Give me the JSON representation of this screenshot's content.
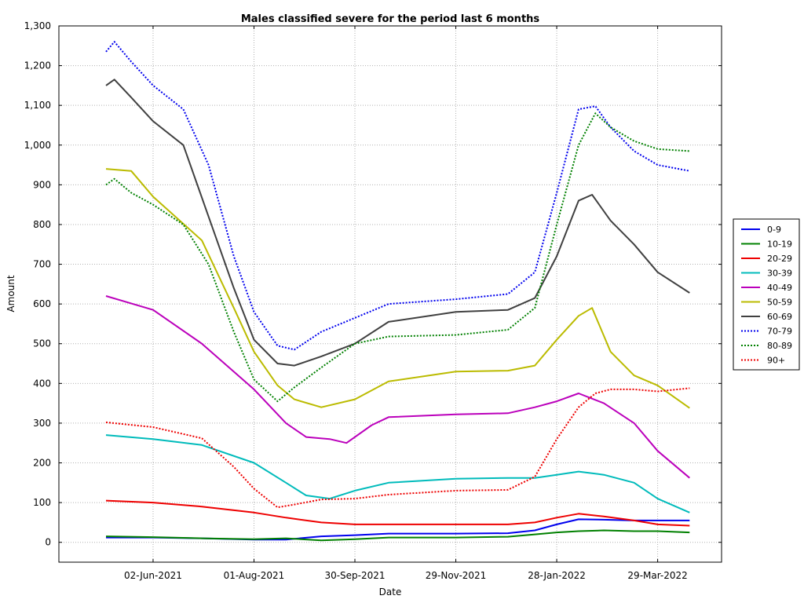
{
  "chart_data": {
    "type": "line",
    "title": "Males classified severe for the period last 6 months",
    "xlabel": "Date",
    "ylabel": "Amount",
    "x_start": "2021-05-05",
    "x_end": "2022-04-17",
    "xlim": [
      "2021-04-07",
      "2022-05-06"
    ],
    "ylim": [
      -50,
      1300
    ],
    "yticks": [
      0,
      100,
      200,
      300,
      400,
      500,
      600,
      700,
      800,
      900,
      1000,
      1100,
      1200,
      1300
    ],
    "ytick_labels": [
      "0",
      "100",
      "200",
      "300",
      "400",
      "500",
      "600",
      "700",
      "800",
      "900",
      "1,000",
      "1,100",
      "1,200",
      "1,300"
    ],
    "xticks": [
      "2021-06-02",
      "2021-08-01",
      "2021-09-30",
      "2021-11-29",
      "2022-01-28",
      "2022-03-29"
    ],
    "xtick_labels": [
      "02-Jun-2021",
      "01-Aug-2021",
      "30-Sep-2021",
      "29-Nov-2021",
      "28-Jan-2022",
      "29-Mar-2022"
    ],
    "grid": true,
    "legend_position": "right",
    "series": [
      {
        "name": "0-9",
        "color": "#0000ee",
        "dash": "solid",
        "points": [
          [
            "2021-05-05",
            12
          ],
          [
            "2021-06-02",
            12
          ],
          [
            "2021-07-01",
            10
          ],
          [
            "2021-08-01",
            7
          ],
          [
            "2021-08-20",
            7
          ],
          [
            "2021-09-10",
            15
          ],
          [
            "2021-09-30",
            18
          ],
          [
            "2021-10-20",
            22
          ],
          [
            "2021-11-29",
            22
          ],
          [
            "2021-12-30",
            23
          ],
          [
            "2022-01-15",
            30
          ],
          [
            "2022-01-28",
            45
          ],
          [
            "2022-02-10",
            58
          ],
          [
            "2022-02-25",
            57
          ],
          [
            "2022-03-15",
            55
          ],
          [
            "2022-03-29",
            55
          ],
          [
            "2022-04-17",
            55
          ]
        ]
      },
      {
        "name": "10-19",
        "color": "#008000",
        "dash": "solid",
        "points": [
          [
            "2021-05-05",
            15
          ],
          [
            "2021-06-02",
            13
          ],
          [
            "2021-07-01",
            10
          ],
          [
            "2021-08-01",
            8
          ],
          [
            "2021-08-20",
            10
          ],
          [
            "2021-09-10",
            5
          ],
          [
            "2021-09-30",
            8
          ],
          [
            "2021-10-20",
            12
          ],
          [
            "2021-11-29",
            12
          ],
          [
            "2021-12-30",
            14
          ],
          [
            "2022-01-15",
            20
          ],
          [
            "2022-01-28",
            25
          ],
          [
            "2022-02-10",
            28
          ],
          [
            "2022-02-25",
            30
          ],
          [
            "2022-03-15",
            28
          ],
          [
            "2022-03-29",
            28
          ],
          [
            "2022-04-17",
            25
          ]
        ]
      },
      {
        "name": "20-29",
        "color": "#ee0000",
        "dash": "solid",
        "points": [
          [
            "2021-05-05",
            105
          ],
          [
            "2021-06-02",
            100
          ],
          [
            "2021-07-01",
            90
          ],
          [
            "2021-08-01",
            75
          ],
          [
            "2021-08-20",
            62
          ],
          [
            "2021-09-10",
            50
          ],
          [
            "2021-09-30",
            45
          ],
          [
            "2021-10-20",
            45
          ],
          [
            "2021-11-29",
            45
          ],
          [
            "2021-12-30",
            45
          ],
          [
            "2022-01-15",
            50
          ],
          [
            "2022-01-28",
            62
          ],
          [
            "2022-02-10",
            72
          ],
          [
            "2022-02-25",
            65
          ],
          [
            "2022-03-15",
            55
          ],
          [
            "2022-03-29",
            45
          ],
          [
            "2022-04-17",
            42
          ]
        ]
      },
      {
        "name": "30-39",
        "color": "#00bbbb",
        "dash": "solid",
        "points": [
          [
            "2021-05-05",
            270
          ],
          [
            "2021-06-02",
            260
          ],
          [
            "2021-07-01",
            245
          ],
          [
            "2021-08-01",
            200
          ],
          [
            "2021-08-20",
            150
          ],
          [
            "2021-09-01",
            118
          ],
          [
            "2021-09-15",
            110
          ],
          [
            "2021-09-30",
            130
          ],
          [
            "2021-10-20",
            150
          ],
          [
            "2021-11-29",
            160
          ],
          [
            "2021-12-30",
            162
          ],
          [
            "2022-01-15",
            162
          ],
          [
            "2022-01-28",
            170
          ],
          [
            "2022-02-10",
            178
          ],
          [
            "2022-02-25",
            170
          ],
          [
            "2022-03-15",
            150
          ],
          [
            "2022-03-29",
            110
          ],
          [
            "2022-04-17",
            75
          ]
        ]
      },
      {
        "name": "40-49",
        "color": "#bb00bb",
        "dash": "solid",
        "points": [
          [
            "2021-05-05",
            620
          ],
          [
            "2021-06-02",
            585
          ],
          [
            "2021-07-01",
            500
          ],
          [
            "2021-08-01",
            385
          ],
          [
            "2021-08-20",
            300
          ],
          [
            "2021-09-01",
            265
          ],
          [
            "2021-09-15",
            260
          ],
          [
            "2021-09-25",
            250
          ],
          [
            "2021-10-10",
            295
          ],
          [
            "2021-10-20",
            315
          ],
          [
            "2021-11-29",
            322
          ],
          [
            "2021-12-30",
            325
          ],
          [
            "2022-01-15",
            340
          ],
          [
            "2022-01-28",
            355
          ],
          [
            "2022-02-10",
            375
          ],
          [
            "2022-02-25",
            350
          ],
          [
            "2022-03-15",
            300
          ],
          [
            "2022-03-29",
            230
          ],
          [
            "2022-04-17",
            162
          ]
        ]
      },
      {
        "name": "50-59",
        "color": "#bbbb00",
        "dash": "solid",
        "points": [
          [
            "2021-05-05",
            940
          ],
          [
            "2021-05-20",
            935
          ],
          [
            "2021-06-02",
            870
          ],
          [
            "2021-07-01",
            760
          ],
          [
            "2021-07-20",
            590
          ],
          [
            "2021-08-01",
            480
          ],
          [
            "2021-08-15",
            395
          ],
          [
            "2021-08-25",
            360
          ],
          [
            "2021-09-10",
            340
          ],
          [
            "2021-09-30",
            360
          ],
          [
            "2021-10-20",
            405
          ],
          [
            "2021-11-29",
            430
          ],
          [
            "2021-12-30",
            432
          ],
          [
            "2022-01-15",
            445
          ],
          [
            "2022-01-28",
            510
          ],
          [
            "2022-02-10",
            570
          ],
          [
            "2022-02-18",
            590
          ],
          [
            "2022-03-01",
            480
          ],
          [
            "2022-03-15",
            420
          ],
          [
            "2022-03-29",
            395
          ],
          [
            "2022-04-17",
            338
          ]
        ]
      },
      {
        "name": "60-69",
        "color": "#404040",
        "dash": "solid",
        "points": [
          [
            "2021-05-05",
            1150
          ],
          [
            "2021-05-10",
            1165
          ],
          [
            "2021-05-20",
            1120
          ],
          [
            "2021-06-02",
            1060
          ],
          [
            "2021-06-20",
            1000
          ],
          [
            "2021-07-05",
            820
          ],
          [
            "2021-07-20",
            640
          ],
          [
            "2021-08-01",
            510
          ],
          [
            "2021-08-15",
            450
          ],
          [
            "2021-08-25",
            445
          ],
          [
            "2021-09-10",
            468
          ],
          [
            "2021-09-30",
            500
          ],
          [
            "2021-10-20",
            555
          ],
          [
            "2021-11-29",
            580
          ],
          [
            "2021-12-30",
            585
          ],
          [
            "2022-01-15",
            615
          ],
          [
            "2022-01-28",
            720
          ],
          [
            "2022-02-10",
            860
          ],
          [
            "2022-02-18",
            875
          ],
          [
            "2022-03-01",
            810
          ],
          [
            "2022-03-15",
            750
          ],
          [
            "2022-03-29",
            680
          ],
          [
            "2022-04-17",
            628
          ]
        ]
      },
      {
        "name": "70-79",
        "color": "#0000ee",
        "dash": "dotted",
        "points": [
          [
            "2021-05-05",
            1235
          ],
          [
            "2021-05-10",
            1260
          ],
          [
            "2021-05-20",
            1210
          ],
          [
            "2021-06-02",
            1150
          ],
          [
            "2021-06-20",
            1090
          ],
          [
            "2021-07-05",
            950
          ],
          [
            "2021-07-20",
            720
          ],
          [
            "2021-08-01",
            580
          ],
          [
            "2021-08-15",
            495
          ],
          [
            "2021-08-25",
            485
          ],
          [
            "2021-09-10",
            530
          ],
          [
            "2021-09-30",
            565
          ],
          [
            "2021-10-20",
            600
          ],
          [
            "2021-11-29",
            612
          ],
          [
            "2021-12-30",
            625
          ],
          [
            "2022-01-15",
            680
          ],
          [
            "2022-01-28",
            880
          ],
          [
            "2022-02-10",
            1090
          ],
          [
            "2022-02-20",
            1098
          ],
          [
            "2022-03-01",
            1045
          ],
          [
            "2022-03-15",
            985
          ],
          [
            "2022-03-29",
            950
          ],
          [
            "2022-04-17",
            935
          ]
        ]
      },
      {
        "name": "80-89",
        "color": "#008000",
        "dash": "dotted",
        "points": [
          [
            "2021-05-05",
            900
          ],
          [
            "2021-05-10",
            915
          ],
          [
            "2021-05-20",
            880
          ],
          [
            "2021-06-02",
            850
          ],
          [
            "2021-06-20",
            800
          ],
          [
            "2021-07-05",
            700
          ],
          [
            "2021-07-20",
            530
          ],
          [
            "2021-08-01",
            410
          ],
          [
            "2021-08-15",
            355
          ],
          [
            "2021-08-25",
            390
          ],
          [
            "2021-09-10",
            440
          ],
          [
            "2021-09-30",
            500
          ],
          [
            "2021-10-20",
            518
          ],
          [
            "2021-11-29",
            522
          ],
          [
            "2021-12-30",
            535
          ],
          [
            "2022-01-15",
            590
          ],
          [
            "2022-01-28",
            800
          ],
          [
            "2022-02-10",
            1000
          ],
          [
            "2022-02-20",
            1080
          ],
          [
            "2022-03-01",
            1045
          ],
          [
            "2022-03-15",
            1010
          ],
          [
            "2022-03-29",
            990
          ],
          [
            "2022-04-17",
            985
          ]
        ]
      },
      {
        "name": "90+",
        "color": "#ee0000",
        "dash": "dotted",
        "points": [
          [
            "2021-05-05",
            302
          ],
          [
            "2021-06-02",
            290
          ],
          [
            "2021-07-01",
            262
          ],
          [
            "2021-07-20",
            190
          ],
          [
            "2021-08-01",
            135
          ],
          [
            "2021-08-15",
            88
          ],
          [
            "2021-08-25",
            95
          ],
          [
            "2021-09-10",
            108
          ],
          [
            "2021-09-30",
            110
          ],
          [
            "2021-10-20",
            120
          ],
          [
            "2021-11-29",
            130
          ],
          [
            "2021-12-30",
            132
          ],
          [
            "2022-01-15",
            165
          ],
          [
            "2022-01-28",
            260
          ],
          [
            "2022-02-10",
            340
          ],
          [
            "2022-02-20",
            375
          ],
          [
            "2022-03-01",
            385
          ],
          [
            "2022-03-15",
            385
          ],
          [
            "2022-03-29",
            380
          ],
          [
            "2022-04-17",
            388
          ]
        ]
      }
    ]
  }
}
